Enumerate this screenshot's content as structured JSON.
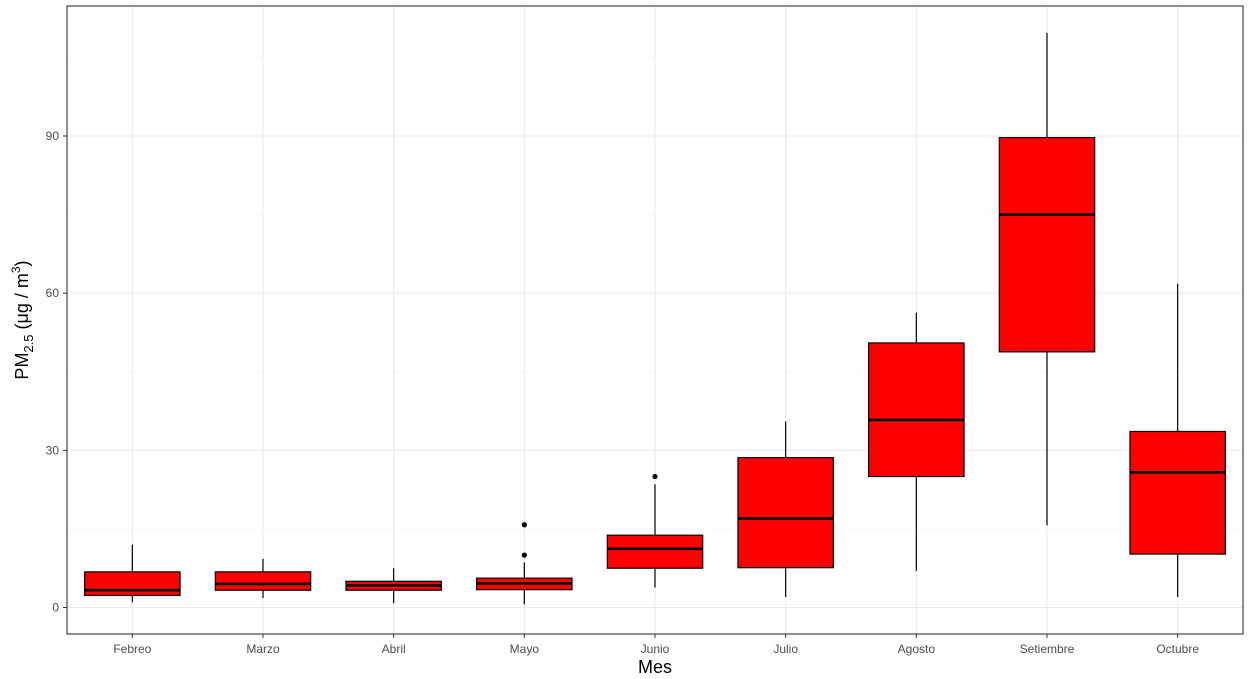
{
  "chart_data": {
    "type": "boxplot",
    "xlabel": "Mes",
    "ylabel": {
      "base": "PM",
      "subscript": "2.5",
      "unit_open": " (μg / m",
      "unit_superscript": "3",
      "unit_close": ")"
    },
    "categories": [
      "Febreo",
      "Marzo",
      "Abril",
      "Mayo",
      "Junio",
      "Julio",
      "Agosto",
      "Setiembre",
      "Octubre"
    ],
    "ylim": [
      -5,
      110
    ],
    "yticks": [
      0,
      30,
      60,
      90
    ],
    "grid": true,
    "legend": "none",
    "fill_color": "#ff0000",
    "line_color": "#000000",
    "series": [
      {
        "category": "Febreo",
        "min": 1,
        "q1": 2.3,
        "median": 3.3,
        "q3": 6.8,
        "max": 12,
        "outliers": []
      },
      {
        "category": "Marzo",
        "min": 1.8,
        "q1": 3.3,
        "median": 4.5,
        "q3": 6.8,
        "max": 9.3,
        "outliers": []
      },
      {
        "category": "Abril",
        "min": 0.8,
        "q1": 3.3,
        "median": 4.2,
        "q3": 5,
        "max": 7.5,
        "outliers": []
      },
      {
        "category": "Mayo",
        "min": 0.6,
        "q1": 3.4,
        "median": 4.6,
        "q3": 5.6,
        "max": 8.6,
        "outliers": [
          10,
          15.8
        ]
      },
      {
        "category": "Junio",
        "min": 3.8,
        "q1": 7.5,
        "median": 11.2,
        "q3": 13.8,
        "max": 23.5,
        "outliers": [
          25
        ]
      },
      {
        "category": "Julio",
        "min": 2,
        "q1": 7.6,
        "median": 17,
        "q3": 28.6,
        "max": 35.5,
        "outliers": []
      },
      {
        "category": "Agosto",
        "min": 7,
        "q1": 25,
        "median": 35.8,
        "q3": 50.5,
        "max": 56.3,
        "outliers": []
      },
      {
        "category": "Setiembre",
        "min": 15.7,
        "q1": 48.8,
        "median": 75,
        "q3": 89.7,
        "max": 109.7,
        "outliers": []
      },
      {
        "category": "Octubre",
        "min": 2,
        "q1": 10.2,
        "median": 25.8,
        "q3": 33.6,
        "max": 61.8,
        "outliers": []
      }
    ]
  }
}
